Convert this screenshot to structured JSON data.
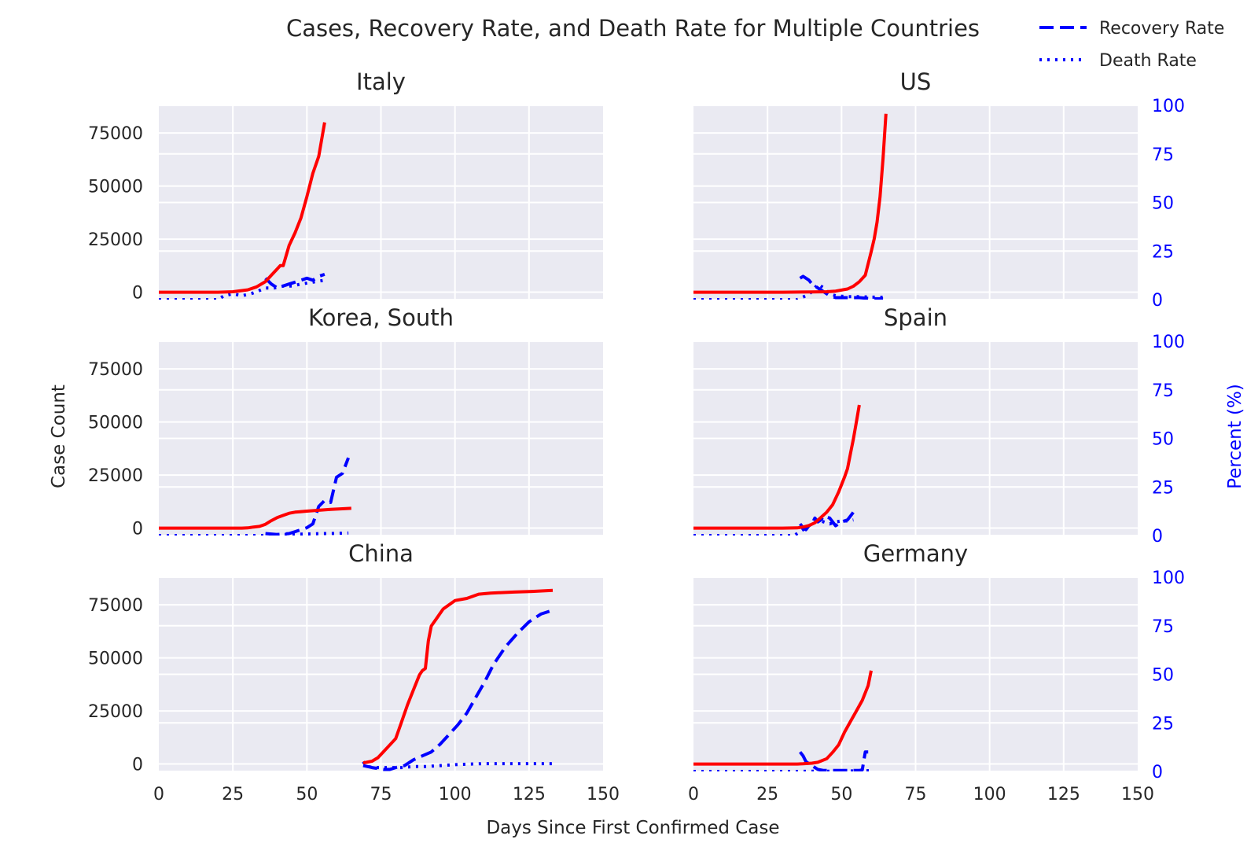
{
  "figure": {
    "title": "Cases, Recovery Rate, and Death Rate for Multiple Countries",
    "xlabel": "Days Since First Confirmed Case",
    "ylabel_left": "Case Count",
    "ylabel_right": "Percent (%)"
  },
  "legend": {
    "placement": "top-right",
    "entries": [
      {
        "label": "Recovery Rate",
        "style": "dashed",
        "color": "#0000ff"
      },
      {
        "label": "Death Rate",
        "style": "dotted",
        "color": "#0000ff"
      }
    ]
  },
  "colors": {
    "cases": "#ff0000",
    "rates": "#0000ff",
    "panel_bg": "#eaeaf2",
    "grid": "#ffffff"
  },
  "chart_data": {
    "type": "line",
    "grid": true,
    "layout": "3x2 subplots, shared x, dual y-axis",
    "xlim": [
      0,
      150
    ],
    "xticks": [
      0,
      25,
      50,
      75,
      100,
      125,
      150
    ],
    "ylim_left": [
      -3500,
      88000
    ],
    "yticks_left": [
      0,
      25000,
      50000,
      75000
    ],
    "ylim_right": [
      0,
      100
    ],
    "yticks_right": [
      0,
      25,
      50,
      75,
      100
    ],
    "panels": [
      {
        "title": "Italy",
        "cases": [
          [
            0,
            0
          ],
          [
            20,
            0
          ],
          [
            25,
            200
          ],
          [
            30,
            1100
          ],
          [
            33,
            2500
          ],
          [
            36,
            5000
          ],
          [
            38,
            8000
          ],
          [
            40,
            11000
          ],
          [
            41,
            12500
          ],
          [
            42,
            12500
          ],
          [
            44,
            22000
          ],
          [
            46,
            28000
          ],
          [
            48,
            35000
          ],
          [
            50,
            45000
          ],
          [
            52,
            56000
          ],
          [
            54,
            64000
          ],
          [
            56,
            80000
          ]
        ],
        "recovery": [
          [
            36,
            11
          ],
          [
            38,
            8
          ],
          [
            40,
            6
          ],
          [
            42,
            7
          ],
          [
            44,
            8
          ],
          [
            46,
            9
          ],
          [
            48,
            10
          ],
          [
            50,
            11
          ],
          [
            52,
            10
          ],
          [
            54,
            12
          ],
          [
            56,
            13
          ]
        ],
        "death": [
          [
            0,
            0
          ],
          [
            20,
            0
          ],
          [
            22,
            2
          ],
          [
            25,
            3
          ],
          [
            28,
            2
          ],
          [
            31,
            3
          ],
          [
            33,
            4
          ],
          [
            36,
            6
          ],
          [
            39,
            6
          ],
          [
            42,
            7
          ],
          [
            45,
            7
          ],
          [
            48,
            8
          ],
          [
            52,
            9
          ],
          [
            56,
            10
          ]
        ]
      },
      {
        "title": "US",
        "cases": [
          [
            0,
            0
          ],
          [
            30,
            0
          ],
          [
            40,
            100
          ],
          [
            45,
            200
          ],
          [
            48,
            500
          ],
          [
            52,
            1500
          ],
          [
            54,
            2800
          ],
          [
            56,
            4900
          ],
          [
            58,
            8000
          ],
          [
            60,
            19000
          ],
          [
            61,
            25000
          ],
          [
            62,
            33000
          ],
          [
            63,
            45000
          ],
          [
            64,
            63000
          ],
          [
            65,
            84000
          ]
        ],
        "recovery": [
          [
            36,
            11
          ],
          [
            37,
            12
          ],
          [
            38,
            11
          ],
          [
            39,
            10
          ],
          [
            40,
            8
          ],
          [
            42,
            6
          ],
          [
            44,
            4
          ],
          [
            46,
            2
          ],
          [
            48,
            1
          ],
          [
            52,
            1
          ],
          [
            56,
            1
          ],
          [
            60,
            0.5
          ],
          [
            64,
            0.4
          ]
        ],
        "death": [
          [
            0,
            0
          ],
          [
            35,
            0
          ],
          [
            38,
            2
          ],
          [
            40,
            4
          ],
          [
            42,
            8
          ],
          [
            44,
            6
          ],
          [
            46,
            3
          ],
          [
            48,
            2
          ],
          [
            52,
            1.5
          ],
          [
            56,
            1.5
          ],
          [
            60,
            1.3
          ],
          [
            64,
            1.2
          ]
        ]
      },
      {
        "title": "Korea, South",
        "cases": [
          [
            0,
            0
          ],
          [
            28,
            0
          ],
          [
            30,
            100
          ],
          [
            32,
            500
          ],
          [
            34,
            800
          ],
          [
            36,
            1800
          ],
          [
            38,
            3500
          ],
          [
            40,
            5000
          ],
          [
            42,
            6000
          ],
          [
            44,
            7000
          ],
          [
            46,
            7500
          ],
          [
            50,
            8000
          ],
          [
            54,
            8400
          ],
          [
            58,
            8800
          ],
          [
            62,
            9100
          ],
          [
            65,
            9300
          ]
        ],
        "recovery": [
          [
            36,
            1
          ],
          [
            40,
            0.5
          ],
          [
            44,
            1
          ],
          [
            46,
            2
          ],
          [
            48,
            3
          ],
          [
            50,
            4
          ],
          [
            52,
            6
          ],
          [
            54,
            15
          ],
          [
            56,
            18
          ],
          [
            58,
            17
          ],
          [
            60,
            30
          ],
          [
            62,
            32
          ],
          [
            64,
            40
          ]
        ],
        "death": [
          [
            0,
            0
          ],
          [
            35,
            0
          ],
          [
            38,
            0.5
          ],
          [
            45,
            0.6
          ],
          [
            50,
            0.8
          ],
          [
            55,
            1
          ],
          [
            60,
            1.1
          ],
          [
            64,
            1.3
          ]
        ]
      },
      {
        "title": "Spain",
        "cases": [
          [
            0,
            0
          ],
          [
            30,
            0
          ],
          [
            35,
            100
          ],
          [
            37,
            500
          ],
          [
            39,
            1200
          ],
          [
            41,
            2500
          ],
          [
            43,
            5000
          ],
          [
            45,
            7500
          ],
          [
            47,
            11000
          ],
          [
            49,
            17000
          ],
          [
            51,
            24000
          ],
          [
            52,
            28000
          ],
          [
            53,
            35000
          ],
          [
            54,
            42000
          ],
          [
            55,
            50000
          ],
          [
            56,
            58000
          ]
        ],
        "recovery": [
          [
            36,
            6
          ],
          [
            37,
            4
          ],
          [
            38,
            3
          ],
          [
            39,
            5
          ],
          [
            40,
            6
          ],
          [
            41,
            9
          ],
          [
            42,
            7
          ],
          [
            43,
            8
          ],
          [
            44,
            10
          ],
          [
            46,
            9
          ],
          [
            48,
            5
          ],
          [
            50,
            7
          ],
          [
            52,
            8
          ],
          [
            54,
            12
          ],
          [
            55,
            13
          ]
        ],
        "death": [
          [
            0,
            0
          ],
          [
            34,
            0
          ],
          [
            36,
            2
          ],
          [
            38,
            4
          ],
          [
            40,
            6
          ],
          [
            42,
            8
          ],
          [
            44,
            7
          ],
          [
            46,
            6
          ],
          [
            48,
            7
          ],
          [
            50,
            7.5
          ],
          [
            52,
            7.5
          ],
          [
            54,
            8
          ]
        ]
      },
      {
        "title": "China",
        "cases": [
          [
            69,
            500
          ],
          [
            72,
            1300
          ],
          [
            74,
            3000
          ],
          [
            76,
            6000
          ],
          [
            78,
            9000
          ],
          [
            80,
            12000
          ],
          [
            82,
            20000
          ],
          [
            84,
            28000
          ],
          [
            86,
            35000
          ],
          [
            88,
            42000
          ],
          [
            89,
            44000
          ],
          [
            90,
            45000
          ],
          [
            91,
            58000
          ],
          [
            92,
            65000
          ],
          [
            94,
            69000
          ],
          [
            96,
            73000
          ],
          [
            98,
            75000
          ],
          [
            100,
            77000
          ],
          [
            104,
            78000
          ],
          [
            108,
            80000
          ],
          [
            112,
            80500
          ],
          [
            120,
            81000
          ],
          [
            126,
            81300
          ],
          [
            133,
            81800
          ]
        ],
        "recovery": [
          [
            69,
            3
          ],
          [
            72,
            2
          ],
          [
            76,
            1
          ],
          [
            78,
            1
          ],
          [
            80,
            2
          ],
          [
            83,
            3
          ],
          [
            86,
            6
          ],
          [
            89,
            8
          ],
          [
            92,
            10
          ],
          [
            95,
            14
          ],
          [
            98,
            19
          ],
          [
            101,
            24
          ],
          [
            104,
            30
          ],
          [
            107,
            38
          ],
          [
            110,
            46
          ],
          [
            113,
            55
          ],
          [
            117,
            64
          ],
          [
            121,
            71
          ],
          [
            125,
            77
          ],
          [
            129,
            81
          ],
          [
            133,
            83
          ]
        ],
        "death": [
          [
            69,
            5
          ],
          [
            70,
            3
          ],
          [
            72,
            2
          ],
          [
            74,
            2
          ],
          [
            78,
            2
          ],
          [
            82,
            2
          ],
          [
            86,
            2.5
          ],
          [
            90,
            2.5
          ],
          [
            95,
            3
          ],
          [
            100,
            3.5
          ],
          [
            105,
            3.8
          ],
          [
            110,
            4
          ],
          [
            120,
            4
          ],
          [
            126,
            4
          ],
          [
            133,
            4
          ]
        ]
      },
      {
        "title": "Germany",
        "cases": [
          [
            0,
            0
          ],
          [
            35,
            0
          ],
          [
            37,
            100
          ],
          [
            40,
            400
          ],
          [
            42,
            800
          ],
          [
            45,
            2500
          ],
          [
            47,
            5500
          ],
          [
            49,
            9000
          ],
          [
            51,
            15000
          ],
          [
            53,
            20000
          ],
          [
            55,
            25000
          ],
          [
            57,
            30000
          ],
          [
            59,
            37000
          ],
          [
            60,
            44000
          ]
        ],
        "recovery": [
          [
            36,
            10
          ],
          [
            37,
            8
          ],
          [
            38,
            5
          ],
          [
            40,
            3
          ],
          [
            42,
            1
          ],
          [
            44,
            0.5
          ],
          [
            46,
            0.5
          ],
          [
            48,
            0.5
          ],
          [
            50,
            0.5
          ],
          [
            52,
            0.5
          ],
          [
            54,
            0.5
          ],
          [
            56,
            0.5
          ],
          [
            57,
            0.8
          ],
          [
            58,
            10
          ],
          [
            59,
            10
          ]
        ],
        "death": [
          [
            0,
            0
          ],
          [
            35,
            0
          ],
          [
            40,
            0.1
          ],
          [
            45,
            0.1
          ],
          [
            50,
            0.2
          ],
          [
            55,
            0.3
          ],
          [
            60,
            0.4
          ]
        ]
      }
    ]
  }
}
